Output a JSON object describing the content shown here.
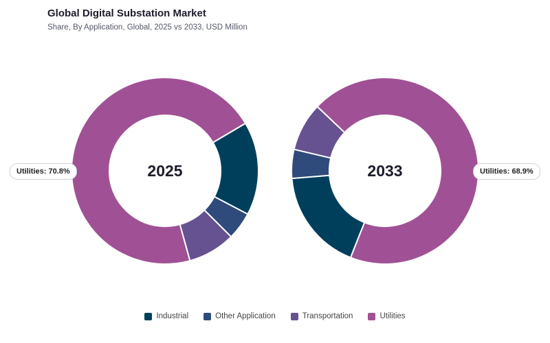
{
  "header": {
    "title": "Global Digital Substation Market",
    "subtitle": "Share, By Application, Global, 2025 vs 2033, USD Million"
  },
  "callouts": [
    {
      "text": "Utilities: 70.8%"
    },
    {
      "text": "Utilities: 68.9%"
    }
  ],
  "colors": {
    "Industrial": "#003f5c",
    "Other Application": "#2f4b7c",
    "Transportation": "#665191",
    "Utilities": "#a05195"
  },
  "chart_data": [
    {
      "type": "pie",
      "center_label": "2025",
      "categories": [
        "Industrial",
        "Other Application",
        "Transportation",
        "Utilities"
      ],
      "values": [
        16.2,
        4.8,
        8.2,
        70.8
      ]
    },
    {
      "type": "pie",
      "center_label": "2033",
      "categories": [
        "Industrial",
        "Other Application",
        "Transportation",
        "Utilities"
      ],
      "values": [
        17.7,
        5.0,
        8.4,
        68.9
      ]
    }
  ],
  "legend": [
    "Industrial",
    "Other Application",
    "Transportation",
    "Utilities"
  ]
}
